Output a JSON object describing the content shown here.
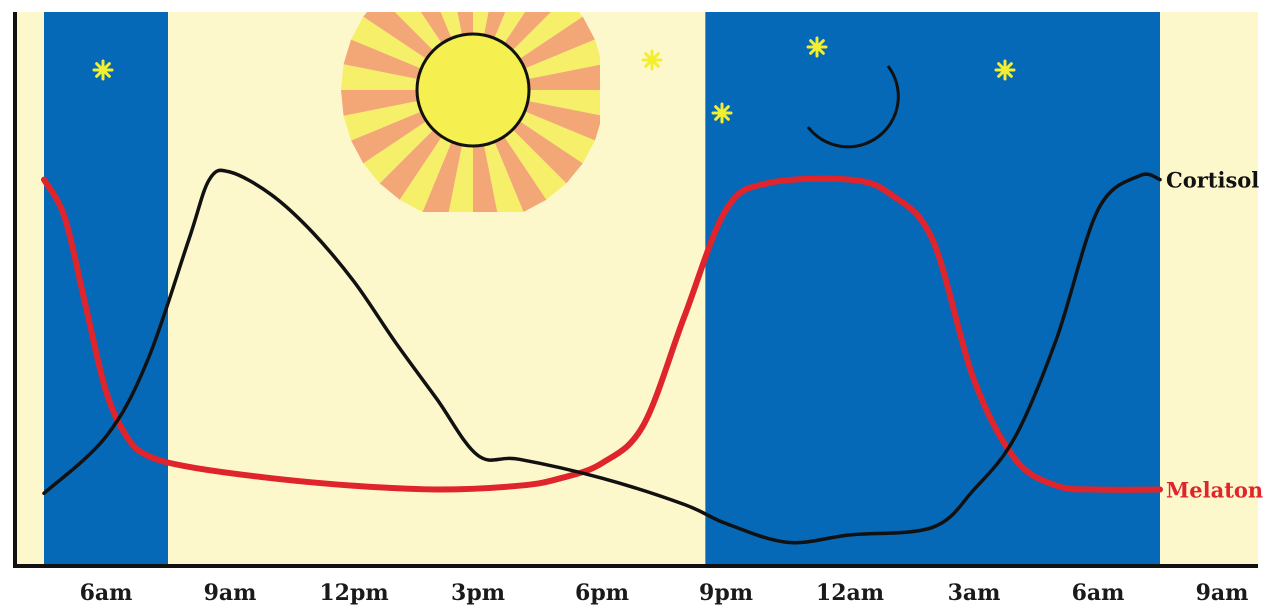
{
  "chart_data": {
    "type": "line",
    "x_ticks": [
      "6am",
      "9am",
      "12pm",
      "3pm",
      "6pm",
      "9pm",
      "12am",
      "3am",
      "6am",
      "9am"
    ],
    "y_range": [
      0,
      100
    ],
    "grid": false,
    "legend": "inline labels at right end of each line",
    "night_spans": [
      [
        4.5,
        7.5
      ],
      [
        20.5,
        31.5
      ]
    ],
    "series": [
      {
        "name": "Cortisol",
        "color": "#111111",
        "points": [
          [
            4.5,
            15
          ],
          [
            6,
            30
          ],
          [
            7,
            50
          ],
          [
            8,
            82
          ],
          [
            8.5,
            98
          ],
          [
            9,
            100
          ],
          [
            10,
            94
          ],
          [
            11,
            84
          ],
          [
            12,
            71
          ],
          [
            13,
            55
          ],
          [
            14,
            40
          ],
          [
            15,
            25
          ],
          [
            16,
            24
          ],
          [
            18,
            19
          ],
          [
            20,
            12
          ],
          [
            21,
            7
          ],
          [
            22.5,
            2
          ],
          [
            24,
            4
          ],
          [
            26,
            6
          ],
          [
            27,
            16
          ],
          [
            28,
            30
          ],
          [
            29,
            56
          ],
          [
            30,
            90
          ],
          [
            31,
            99
          ],
          [
            31.5,
            98
          ]
        ]
      },
      {
        "name": "Melatonin",
        "color": "#e0242c",
        "points": [
          [
            4.5,
            98
          ],
          [
            5,
            88
          ],
          [
            5.5,
            65
          ],
          [
            6,
            42
          ],
          [
            6.5,
            30
          ],
          [
            7,
            25
          ],
          [
            8,
            22
          ],
          [
            10,
            19
          ],
          [
            12,
            17
          ],
          [
            14,
            16
          ],
          [
            16,
            17
          ],
          [
            17,
            19
          ],
          [
            18,
            23
          ],
          [
            19,
            33
          ],
          [
            20,
            62
          ],
          [
            21,
            90
          ],
          [
            22,
            97
          ],
          [
            24,
            98
          ],
          [
            25,
            94
          ],
          [
            26,
            82
          ],
          [
            27,
            45
          ],
          [
            28,
            24
          ],
          [
            29,
            17
          ],
          [
            30,
            16
          ],
          [
            31.5,
            16
          ]
        ]
      }
    ]
  }
}
